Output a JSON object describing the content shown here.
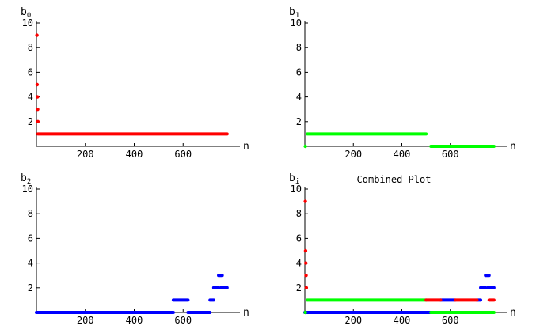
{
  "chart_data": [
    {
      "type": "scatter",
      "title": "",
      "ylabel": "b",
      "ylabel_sub": "0",
      "xlabel": "n",
      "xlim": [
        0,
        800
      ],
      "ylim": [
        0,
        10
      ],
      "xticks": [
        200,
        400,
        600
      ],
      "yticks": [
        2,
        4,
        6,
        8,
        10
      ],
      "series": [
        {
          "color": "#ff0000",
          "points": [
            [
              2,
              9
            ],
            [
              3,
              5
            ],
            [
              4,
              4
            ],
            [
              5,
              3
            ],
            [
              6,
              2
            ]
          ],
          "segments": [
            {
              "x": [
                6,
                780
              ],
              "y": 1
            }
          ]
        }
      ]
    },
    {
      "type": "scatter",
      "title": "",
      "ylabel": "b",
      "ylabel_sub": "1",
      "xlabel": "n",
      "xlim": [
        0,
        800
      ],
      "ylim": [
        0,
        10
      ],
      "xticks": [
        200,
        400,
        600
      ],
      "yticks": [
        2,
        4,
        6,
        8,
        10
      ],
      "series": [
        {
          "color": "#00ff00",
          "points": [
            [
              2,
              0
            ]
          ],
          "segments": [
            {
              "x": [
                10,
                500
              ],
              "y": 1
            },
            {
              "x": [
                520,
                780
              ],
              "y": 0
            }
          ]
        }
      ]
    },
    {
      "type": "scatter",
      "title": "",
      "ylabel": "b",
      "ylabel_sub": "2",
      "xlabel": "n",
      "xlim": [
        0,
        800
      ],
      "ylim": [
        0,
        10
      ],
      "xticks": [
        200,
        400,
        600
      ],
      "yticks": [
        2,
        4,
        6,
        8,
        10
      ],
      "series": [
        {
          "color": "#0000ff",
          "points": [],
          "segments": [
            {
              "x": [
                0,
                560
              ],
              "y": 0
            },
            {
              "x": [
                560,
                620
              ],
              "y": 1
            },
            {
              "x": [
                620,
                710
              ],
              "y": 0
            },
            {
              "x": [
                710,
                725
              ],
              "y": 1
            },
            {
              "x": [
                725,
                745
              ],
              "y": 2
            },
            {
              "x": [
                745,
                760
              ],
              "y": 3
            },
            {
              "x": [
                755,
                780
              ],
              "y": 2
            }
          ]
        }
      ]
    },
    {
      "type": "scatter",
      "title": "Combined Plot",
      "ylabel": "b",
      "ylabel_sub": "i",
      "xlabel": "n",
      "xlim": [
        0,
        800
      ],
      "ylim": [
        0,
        10
      ],
      "xticks": [
        200,
        400,
        600
      ],
      "yticks": [
        2,
        4,
        6,
        8,
        10
      ],
      "series": [
        {
          "color": "#0000ff",
          "points": [],
          "segments": [
            {
              "x": [
                0,
                560
              ],
              "y": 0
            },
            {
              "x": [
                560,
                620
              ],
              "y": 1
            },
            {
              "x": [
                620,
                710
              ],
              "y": 0
            },
            {
              "x": [
                710,
                725
              ],
              "y": 1
            },
            {
              "x": [
                725,
                745
              ],
              "y": 2
            },
            {
              "x": [
                745,
                760
              ],
              "y": 3
            },
            {
              "x": [
                755,
                780
              ],
              "y": 2
            }
          ]
        },
        {
          "color": "#00ff00",
          "points": [
            [
              2,
              0
            ]
          ],
          "segments": [
            {
              "x": [
                10,
                500
              ],
              "y": 1
            },
            {
              "x": [
                520,
                780
              ],
              "y": 0
            }
          ]
        },
        {
          "color": "#ff0000",
          "points": [
            [
              2,
              9
            ],
            [
              3,
              5
            ],
            [
              4,
              4
            ],
            [
              5,
              3
            ],
            [
              6,
              2
            ]
          ],
          "segments": [
            {
              "x": [
                500,
                560
              ],
              "y": 1
            },
            {
              "x": [
                620,
                710
              ],
              "y": 1
            },
            {
              "x": [
                760,
                780
              ],
              "y": 1
            }
          ]
        }
      ]
    }
  ]
}
